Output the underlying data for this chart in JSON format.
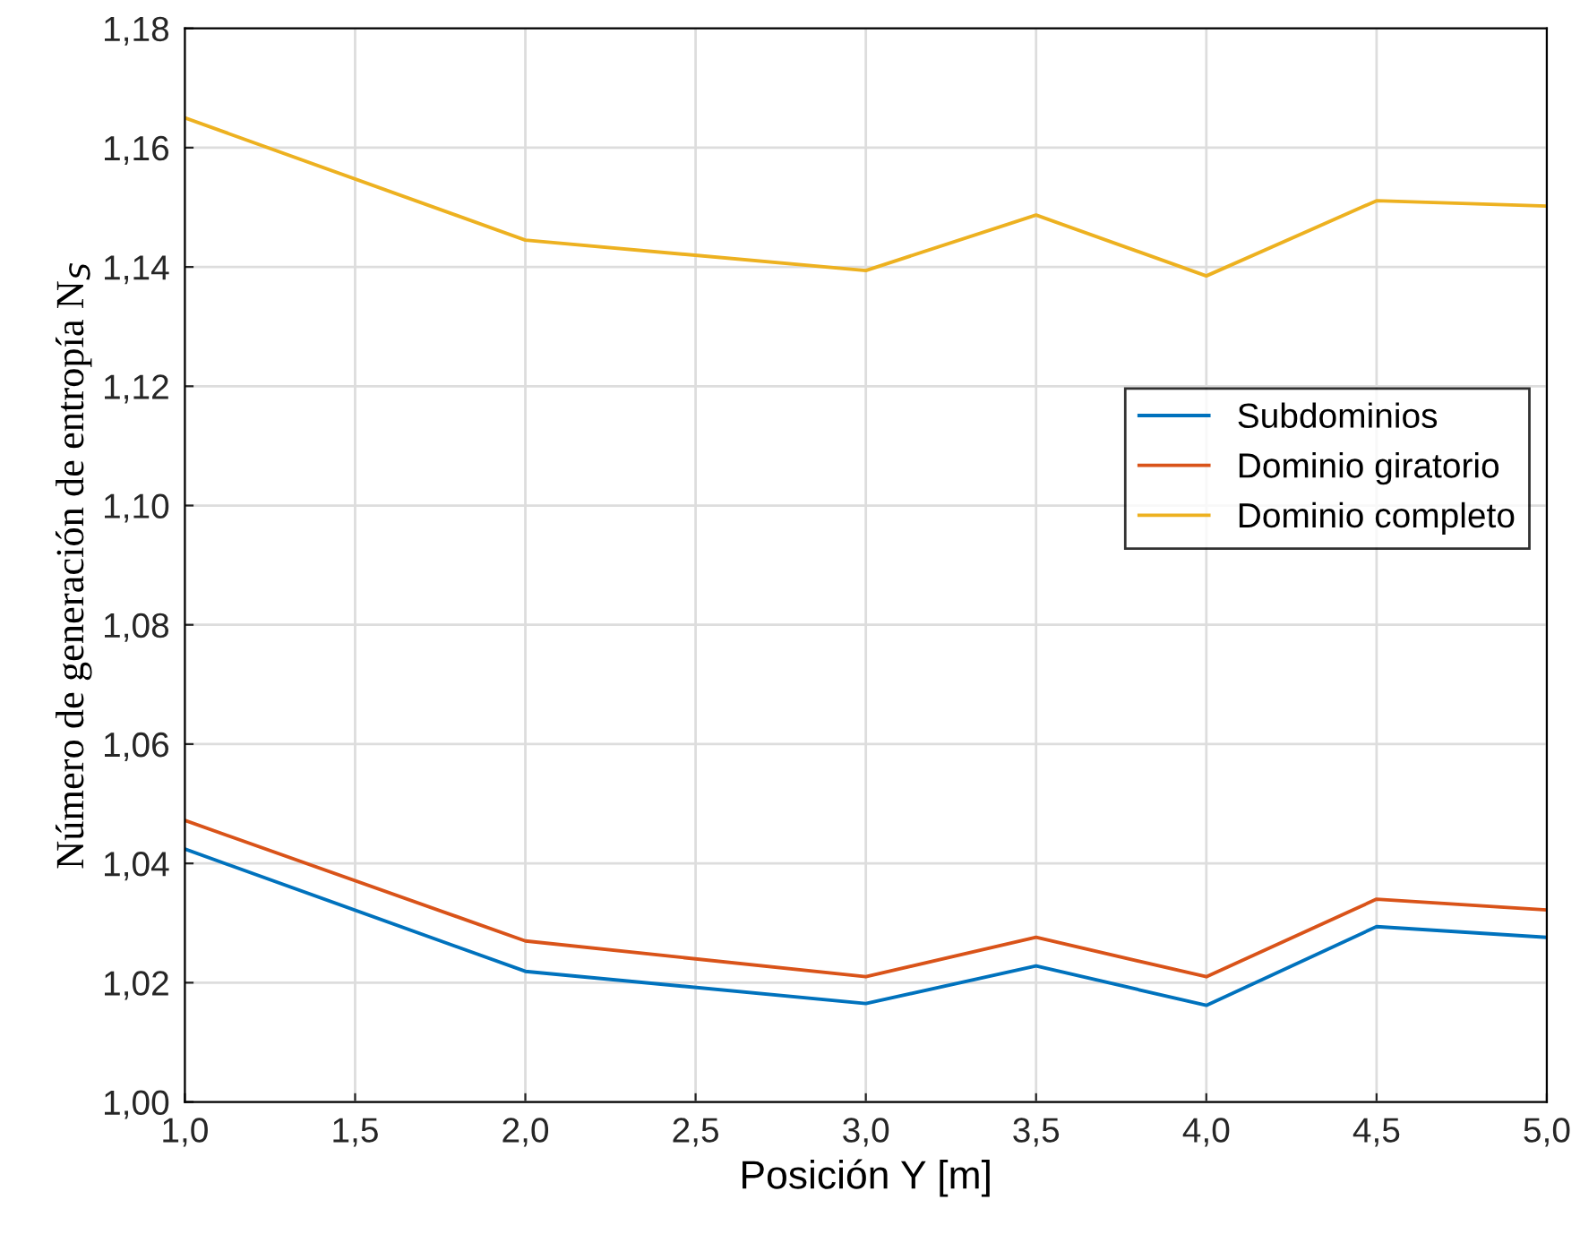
{
  "chart_data": {
    "type": "line",
    "xlabel": "Posición Y [m]",
    "ylabel": "Número de generación de entropía N$_{S}$",
    "x": [
      1.0,
      2.0,
      3.0,
      3.5,
      4.0,
      4.5,
      5.0
    ],
    "series": [
      {
        "name": "Subdominios",
        "color": "#0072bd",
        "values": [
          1.0424,
          1.0219,
          1.0165,
          1.0228,
          1.0162,
          1.0294,
          1.0276
        ]
      },
      {
        "name": "Dominio giratorio",
        "color": "#d95319",
        "values": [
          1.0472,
          1.027,
          1.021,
          1.0276,
          1.021,
          1.034,
          1.0322
        ]
      },
      {
        "name": "Dominio completo",
        "color": "#edb120",
        "values": [
          1.165,
          1.1445,
          1.1394,
          1.1487,
          1.1385,
          1.1511,
          1.1502
        ]
      }
    ],
    "xlim": [
      1.0,
      5.0
    ],
    "ylim": [
      1.0,
      1.18
    ],
    "xticks": [
      {
        "value": 1.0,
        "label": "1,0"
      },
      {
        "value": 1.5,
        "label": "1,5"
      },
      {
        "value": 2.0,
        "label": "2,0"
      },
      {
        "value": 2.5,
        "label": "2,5"
      },
      {
        "value": 3.0,
        "label": "3,0"
      },
      {
        "value": 3.5,
        "label": "3,5"
      },
      {
        "value": 4.0,
        "label": "4,0"
      },
      {
        "value": 4.5,
        "label": "4,5"
      },
      {
        "value": 5.0,
        "label": "5,0"
      }
    ],
    "yticks": [
      {
        "value": 1.0,
        "label": "1,00"
      },
      {
        "value": 1.02,
        "label": "1,02"
      },
      {
        "value": 1.04,
        "label": "1,04"
      },
      {
        "value": 1.06,
        "label": "1,06"
      },
      {
        "value": 1.08,
        "label": "1,08"
      },
      {
        "value": 1.1,
        "label": "1,10"
      },
      {
        "value": 1.12,
        "label": "1,12"
      },
      {
        "value": 1.14,
        "label": "1,14"
      },
      {
        "value": 1.16,
        "label": "1,16"
      },
      {
        "value": 1.18,
        "label": "1,18"
      }
    ],
    "grid": true,
    "legend": "center right",
    "marker": "none",
    "line_style": "solid"
  }
}
